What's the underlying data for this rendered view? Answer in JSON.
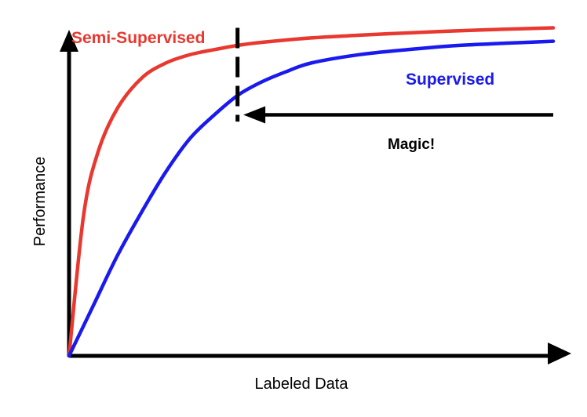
{
  "colors": {
    "semi_supervised": "#e8382f",
    "supervised": "#1a1aee",
    "axes": "#000000",
    "marker": "#000000"
  },
  "chart_data": {
    "type": "line",
    "title": "",
    "xlabel": "Labeled Data",
    "ylabel": "Performance",
    "grid": false,
    "legend": "none",
    "series": [
      {
        "name": "Semi-Supervised",
        "color": "#e8382f",
        "x": [
          0,
          0.03,
          0.06,
          0.1,
          0.15,
          0.2,
          0.25,
          0.3,
          0.35,
          0.4,
          0.5,
          0.6,
          0.7,
          0.8,
          0.9,
          1.0
        ],
        "y": [
          0,
          0.42,
          0.61,
          0.74,
          0.83,
          0.875,
          0.9,
          0.915,
          0.928,
          0.937,
          0.95,
          0.958,
          0.965,
          0.971,
          0.976,
          0.98
        ]
      },
      {
        "name": "Supervised",
        "color": "#1a1aee",
        "x": [
          0,
          0.05,
          0.1,
          0.15,
          0.2,
          0.25,
          0.3,
          0.35,
          0.4,
          0.45,
          0.5,
          0.6,
          0.7,
          0.8,
          0.9,
          1.0
        ],
        "y": [
          0,
          0.15,
          0.3,
          0.43,
          0.55,
          0.65,
          0.72,
          0.78,
          0.82,
          0.85,
          0.875,
          0.9,
          0.915,
          0.927,
          0.934,
          0.94
        ]
      }
    ],
    "annotations": [
      {
        "type": "vline",
        "style": "dashed",
        "x": 0.348,
        "y_range": [
          0.7,
          0.98
        ]
      },
      {
        "type": "arrow",
        "text": "Magic!",
        "from": [
          1.0,
          0.72
        ],
        "to": [
          0.36,
          0.72
        ]
      }
    ]
  }
}
